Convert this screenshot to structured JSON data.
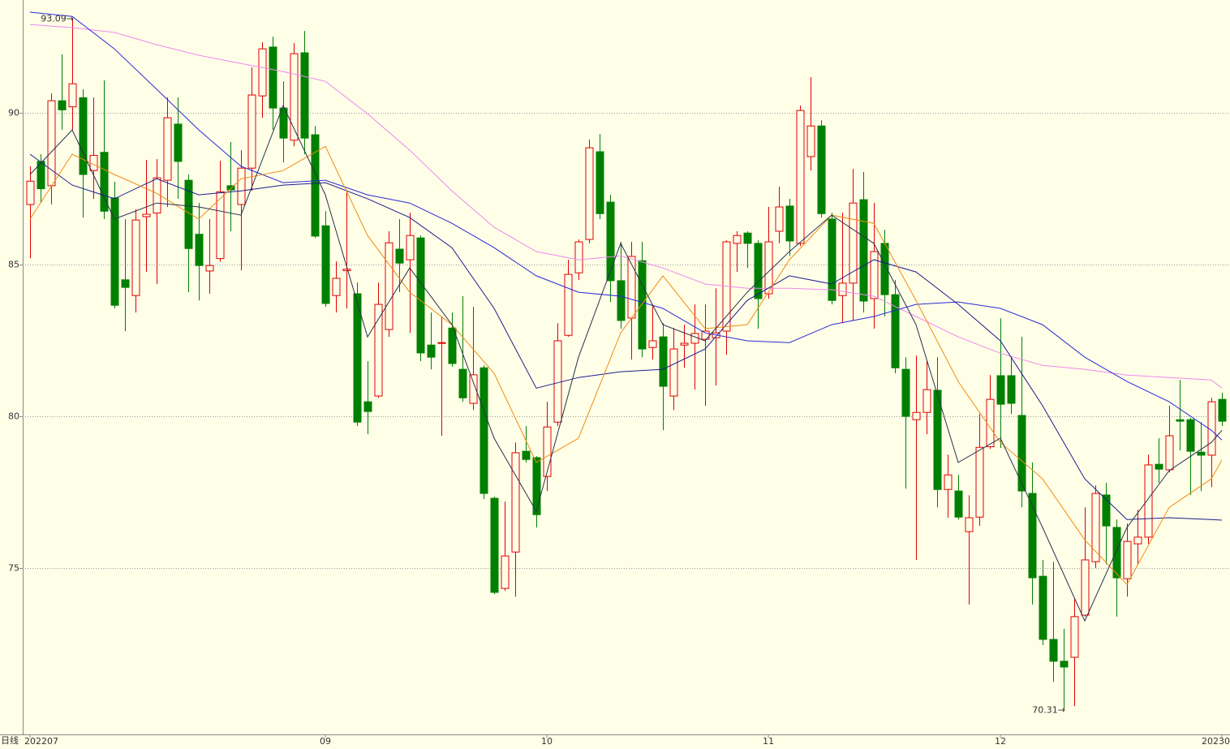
{
  "chart_data": {
    "type": "candlestick",
    "period_label": "日线",
    "categories": [
      "202207",
      null,
      null,
      null,
      null,
      null,
      null,
      null,
      null,
      null,
      null,
      null,
      null,
      null,
      null,
      null,
      null,
      null,
      null,
      null,
      null,
      null,
      null,
      null,
      null,
      null,
      null,
      null,
      "09",
      null,
      null,
      null,
      null,
      null,
      null,
      null,
      null,
      null,
      null,
      null,
      null,
      null,
      null,
      null,
      null,
      null,
      null,
      null,
      null,
      "10",
      null,
      null,
      null,
      null,
      null,
      null,
      null,
      null,
      null,
      null,
      null,
      null,
      null,
      null,
      null,
      null,
      null,
      null,
      null,
      null,
      "11",
      null,
      null,
      null,
      null,
      null,
      null,
      null,
      null,
      null,
      null,
      null,
      null,
      null,
      null,
      null,
      null,
      null,
      null,
      null,
      null,
      null,
      "12",
      null,
      null,
      null,
      null,
      null,
      null,
      null,
      null,
      null,
      null,
      null,
      null,
      null,
      null,
      null,
      null,
      null,
      null,
      null,
      null,
      "20230"
    ],
    "open": [
      86.98,
      88.4,
      87.6,
      90.4,
      90.2,
      90.5,
      88.1,
      88.7,
      87.2,
      84.5,
      83.98,
      86.58,
      86.7,
      87.78,
      89.63,
      87.78,
      86.0,
      84.79,
      85.2,
      87.6,
      86.98,
      88.18,
      90.56,
      92.17,
      90.16,
      89.1,
      91.98,
      89.28,
      86.28,
      83.98,
      84.8,
      84.04,
      80.48,
      80.67,
      82.86,
      85.51,
      85.16,
      85.88,
      82.35,
      82.41,
      82.91,
      81.55,
      80.43,
      81.6,
      77.3,
      74.33,
      75.53,
      78.85,
      78.64,
      78.02,
      79.81,
      82.67,
      84.73,
      85.83,
      88.72,
      87.06,
      84.47,
      83.24,
      85.13,
      82.27,
      82.62,
      80.67,
      82.35,
      82.41,
      82.54,
      82.59,
      82.81,
      85.7,
      86.04,
      85.7,
      84.04,
      86.1,
      86.93,
      85.7,
      88.56,
      89.57,
      86.5,
      83.98,
      84.39,
      87.14,
      83.88,
      85.7,
      84.01,
      81.55,
      79.89,
      80.13,
      80.86,
      77.59,
      77.54,
      76.2,
      76.68,
      79.0,
      81.34,
      81.34,
      80.03,
      77.46,
      74.73,
      72.65,
      71.93,
      72.06,
      73.45,
      75.21,
      77.41,
      76.34,
      74.65,
      75.8,
      76.02,
      78.42,
      78.24,
      79.89,
      79.89,
      78.82,
      78.72,
      80.56
    ],
    "high": [
      88.24,
      88.64,
      90.64,
      91.93,
      93.09,
      90.78,
      90.51,
      91.07,
      87.73,
      86.5,
      86.82,
      88.45,
      88.48,
      90.51,
      90.51,
      87.97,
      87.03,
      86.5,
      88.42,
      89.04,
      88.77,
      91.5,
      92.33,
      92.51,
      91.04,
      92.3,
      92.7,
      89.57,
      86.76,
      85.11,
      87.43,
      84.41,
      81.82,
      84.41,
      86.1,
      86.5,
      86.71,
      85.96,
      83.42,
      83.29,
      83.42,
      83.96,
      83.61,
      81.68,
      77.35,
      77.19,
      79.14,
      79.68,
      78.69,
      80.48,
      83.07,
      85.16,
      85.83,
      89.12,
      89.3,
      87.3,
      85.75,
      85.75,
      85.75,
      83.69,
      83.07,
      82.91,
      83.02,
      83.69,
      83.69,
      84.22,
      85.8,
      86.1,
      86.1,
      85.8,
      86.9,
      87.57,
      87.17,
      90.24,
      91.18,
      89.76,
      86.71,
      86.71,
      88.15,
      88.05,
      87.03,
      86.15,
      84.49,
      81.95,
      82.0,
      81.82,
      81.95,
      78.74,
      78.07,
      77.4,
      80.08,
      81.36,
      83.23,
      81.95,
      82.62,
      78.48,
      75.27,
      75.21,
      73.0,
      73.98,
      77.0,
      77.73,
      77.81,
      76.6,
      76.47,
      76.92,
      78.74,
      79.28,
      80.35,
      81.2,
      79.95,
      79.81,
      80.61,
      80.78
    ],
    "low": [
      85.21,
      87.03,
      86.98,
      89.44,
      89.44,
      86.55,
      87.17,
      86.5,
      83.56,
      82.81,
      83.42,
      84.76,
      84.36,
      86.9,
      87.17,
      84.09,
      83.82,
      84.04,
      85.1,
      86.1,
      84.81,
      87.43,
      89.84,
      89.44,
      88.37,
      88.9,
      88.64,
      85.88,
      83.61,
      83.42,
      83.56,
      79.68,
      79.41,
      80.61,
      82.62,
      84.09,
      82.75,
      81.82,
      81.55,
      79.36,
      81.63,
      80.48,
      80.21,
      77.27,
      74.14,
      74.25,
      74.06,
      78.48,
      76.34,
      77.54,
      79.68,
      82.62,
      84.49,
      85.7,
      86.5,
      83.77,
      82.89,
      81.87,
      81.95,
      81.87,
      79.54,
      80.21,
      81.6,
      80.88,
      80.35,
      81.01,
      82.03,
      84.76,
      84.89,
      82.89,
      83.88,
      85.7,
      85.29,
      85.61,
      88.1,
      86.55,
      83.69,
      83.07,
      83.15,
      83.42,
      82.89,
      83.29,
      81.42,
      77.62,
      75.27,
      79.41,
      77.0,
      76.66,
      76.6,
      73.8,
      76.39,
      78.93,
      78.96,
      80.08,
      77.0,
      73.8,
      72.46,
      71.25,
      70.31,
      70.45,
      73.4,
      75.0,
      75.13,
      73.4,
      74.06,
      75.13,
      75.8,
      77.81,
      78.15,
      78.88,
      77.41,
      77.54,
      77.67,
      79.68
    ],
    "close": [
      87.75,
      87.5,
      90.4,
      90.1,
      90.96,
      87.97,
      88.6,
      86.76,
      83.66,
      84.25,
      86.47,
      86.66,
      87.86,
      89.84,
      88.4,
      85.53,
      84.97,
      84.97,
      87.4,
      87.46,
      88.18,
      90.59,
      92.11,
      90.16,
      89.17,
      91.95,
      89.17,
      85.94,
      83.72,
      84.55,
      84.85,
      79.81,
      80.16,
      83.69,
      85.72,
      85.05,
      85.96,
      82.09,
      81.95,
      82.43,
      81.74,
      80.61,
      81.37,
      77.46,
      74.2,
      75.4,
      78.8,
      78.58,
      76.76,
      79.65,
      82.49,
      84.68,
      85.75,
      88.85,
      86.68,
      84.47,
      83.16,
      85.27,
      82.22,
      82.49,
      80.99,
      82.22,
      82.41,
      82.73,
      82.81,
      82.75,
      85.75,
      85.96,
      85.7,
      83.88,
      85.75,
      86.9,
      85.78,
      90.08,
      89.57,
      86.68,
      83.82,
      84.39,
      87.03,
      83.8,
      85.43,
      84.01,
      81.6,
      80.0,
      80.13,
      80.88,
      77.59,
      78.07,
      76.68,
      76.66,
      78.98,
      80.56,
      80.4,
      80.43,
      77.54,
      74.68,
      72.65,
      71.93,
      71.74,
      73.4,
      75.27,
      77.46,
      76.39,
      74.68,
      75.88,
      76.02,
      78.4,
      78.26,
      79.36,
      79.84,
      78.85,
      78.72,
      80.48,
      79.84
    ],
    "up_color": "#e00000",
    "down_color": "#008000",
    "series": [
      {
        "color": "#ee88ee",
        "x": [
          0,
          4,
          8,
          12,
          16,
          20,
          24,
          28,
          32,
          36,
          40,
          44,
          48,
          52,
          56,
          60,
          64,
          68,
          72,
          76,
          80,
          84,
          88,
          92,
          96,
          100,
          104,
          108,
          112,
          113
        ],
        "values": [
          92.91,
          92.81,
          92.65,
          92.25,
          91.9,
          91.63,
          91.36,
          91.04,
          89.97,
          88.77,
          87.43,
          86.23,
          85.43,
          85.16,
          85.29,
          84.89,
          84.36,
          84.22,
          84.22,
          84.17,
          83.96,
          83.29,
          82.62,
          82.08,
          81.68,
          81.55,
          81.36,
          81.28,
          81.2,
          80.93
        ]
      },
      {
        "color": "#2a2ad8",
        "x": [
          0,
          4,
          8,
          12,
          16,
          20,
          24,
          28,
          32,
          36,
          40,
          44,
          48,
          52,
          56,
          60,
          64,
          68,
          72,
          76,
          80,
          84,
          88,
          92,
          96,
          100,
          104,
          108,
          112,
          113
        ],
        "values": [
          93.32,
          93.18,
          92.11,
          90.78,
          89.44,
          88.24,
          87.7,
          87.78,
          87.3,
          87.03,
          86.36,
          85.56,
          84.63,
          84.09,
          83.96,
          83.56,
          82.75,
          82.49,
          82.43,
          83.02,
          83.29,
          83.69,
          83.77,
          83.56,
          83.02,
          81.95,
          81.15,
          80.48,
          79.54,
          79.22
        ]
      },
      {
        "color": "#1c1c8c",
        "x": [
          0,
          4,
          8,
          12,
          16,
          20,
          24,
          28,
          32,
          36,
          40,
          44,
          48,
          52,
          56,
          60,
          64,
          68,
          72,
          76,
          80,
          84,
          88,
          92,
          96,
          100,
          104,
          108,
          112,
          113
        ],
        "values": [
          88.64,
          87.62,
          87.17,
          87.83,
          87.3,
          87.43,
          87.62,
          87.7,
          87.17,
          86.55,
          85.56,
          83.56,
          80.93,
          81.28,
          81.47,
          81.55,
          82.22,
          83.82,
          84.63,
          84.36,
          85.16,
          84.76,
          83.69,
          82.49,
          80.35,
          77.94,
          76.6,
          76.66,
          76.6,
          76.58
        ]
      },
      {
        "color": "#f08a10",
        "x": [
          0,
          4,
          8,
          12,
          16,
          20,
          24,
          28,
          32,
          36,
          40,
          44,
          48,
          52,
          56,
          60,
          64,
          68,
          72,
          76,
          80,
          84,
          88,
          92,
          96,
          100,
          104,
          108,
          112,
          113
        ],
        "values": [
          86.5,
          88.64,
          87.97,
          87.35,
          86.5,
          87.83,
          88.1,
          88.9,
          85.96,
          84.09,
          83.02,
          81.42,
          78.48,
          79.28,
          82.75,
          84.63,
          82.89,
          83.02,
          85.16,
          86.63,
          86.36,
          83.82,
          81.15,
          79.14,
          77.94,
          75.93,
          74.46,
          77.0,
          77.94,
          78.56
        ]
      },
      {
        "color": "#283050",
        "x": [
          0,
          4,
          8,
          12,
          16,
          20,
          24,
          28,
          32,
          36,
          40,
          44,
          48,
          52,
          56,
          60,
          64,
          68,
          72,
          76,
          80,
          84,
          88,
          92,
          96,
          100,
          104,
          108,
          112,
          113
        ],
        "values": [
          87.97,
          89.44,
          86.5,
          87.03,
          86.9,
          86.63,
          90.24,
          87.3,
          82.62,
          84.89,
          83.02,
          79.28,
          76.87,
          81.95,
          85.7,
          83.02,
          82.49,
          84.09,
          85.43,
          86.63,
          85.7,
          83.02,
          78.48,
          79.28,
          76.34,
          73.26,
          76.34,
          78.21,
          79.14,
          79.54
        ]
      }
    ],
    "annotations": [
      {
        "label": "93.09→",
        "value": 93.09
      },
      {
        "label": "70.31→",
        "value": 70.31
      }
    ],
    "ylim": [
      69.52,
      93.72
    ],
    "yticks": [
      75,
      80,
      85,
      90
    ],
    "grid": true
  }
}
